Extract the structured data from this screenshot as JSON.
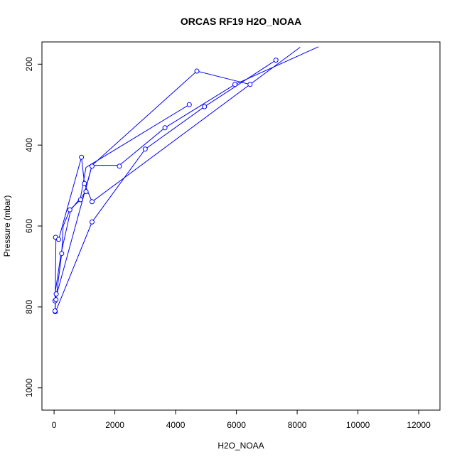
{
  "chart_data": {
    "type": "line",
    "title": "ORCAS RF19 H2O_NOAA",
    "xlabel": "H2O_NOAA",
    "ylabel": "Pressure (mbar)",
    "xlim": [
      -400,
      12700
    ],
    "ylim": [
      1055,
      145
    ],
    "y_reversed": true,
    "xticks": [
      0,
      2000,
      4000,
      6000,
      8000,
      10000,
      12000
    ],
    "yticks": [
      200,
      400,
      600,
      800,
      1000
    ],
    "grid": false,
    "legend": "none",
    "series": [
      {
        "style": "line-with-open-circles",
        "color": "#0000ff",
        "x": [
          30,
          40,
          80,
          250,
          300,
          520,
          870,
          1020,
          1250,
          2150,
          3650,
          5950,
          8700,
          null,
          8100,
          1250,
          1000,
          900,
          150,
          60,
          40,
          30,
          null,
          7300,
          4950,
          3000,
          1250,
          50,
          null,
          6450,
          4700,
          1250,
          40,
          null,
          4450,
          1050,
          870,
          550,
          230,
          30,
          40
        ],
        "y": [
          812,
          785,
          770,
          668,
          600,
          560,
          535,
          515,
          450,
          450,
          357,
          250,
          157,
          null,
          158,
          540,
          495,
          430,
          633,
          628,
          780,
          812,
          null,
          190,
          305,
          410,
          590,
          812,
          null,
          250,
          217,
          450,
          782,
          null,
          300,
          455,
          530,
          560,
          668,
          768,
          812
        ],
        "points": [
          {
            "x": 40,
            "y": 812
          },
          {
            "x": 30,
            "y": 810
          },
          {
            "x": 30,
            "y": 785
          },
          {
            "x": 60,
            "y": 782
          },
          {
            "x": 70,
            "y": 768
          },
          {
            "x": 50,
            "y": 628
          },
          {
            "x": 150,
            "y": 633
          },
          {
            "x": 250,
            "y": 668
          },
          {
            "x": 520,
            "y": 560
          },
          {
            "x": 870,
            "y": 535
          },
          {
            "x": 1050,
            "y": 515
          },
          {
            "x": 1000,
            "y": 495
          },
          {
            "x": 900,
            "y": 430
          },
          {
            "x": 1250,
            "y": 452
          },
          {
            "x": 1250,
            "y": 540
          },
          {
            "x": 1250,
            "y": 590
          },
          {
            "x": 2150,
            "y": 452
          },
          {
            "x": 3000,
            "y": 410
          },
          {
            "x": 3650,
            "y": 357
          },
          {
            "x": 4450,
            "y": 300
          },
          {
            "x": 4950,
            "y": 305
          },
          {
            "x": 4700,
            "y": 217
          },
          {
            "x": 5950,
            "y": 250
          },
          {
            "x": 6450,
            "y": 250
          },
          {
            "x": 7300,
            "y": 190
          }
        ]
      }
    ]
  }
}
